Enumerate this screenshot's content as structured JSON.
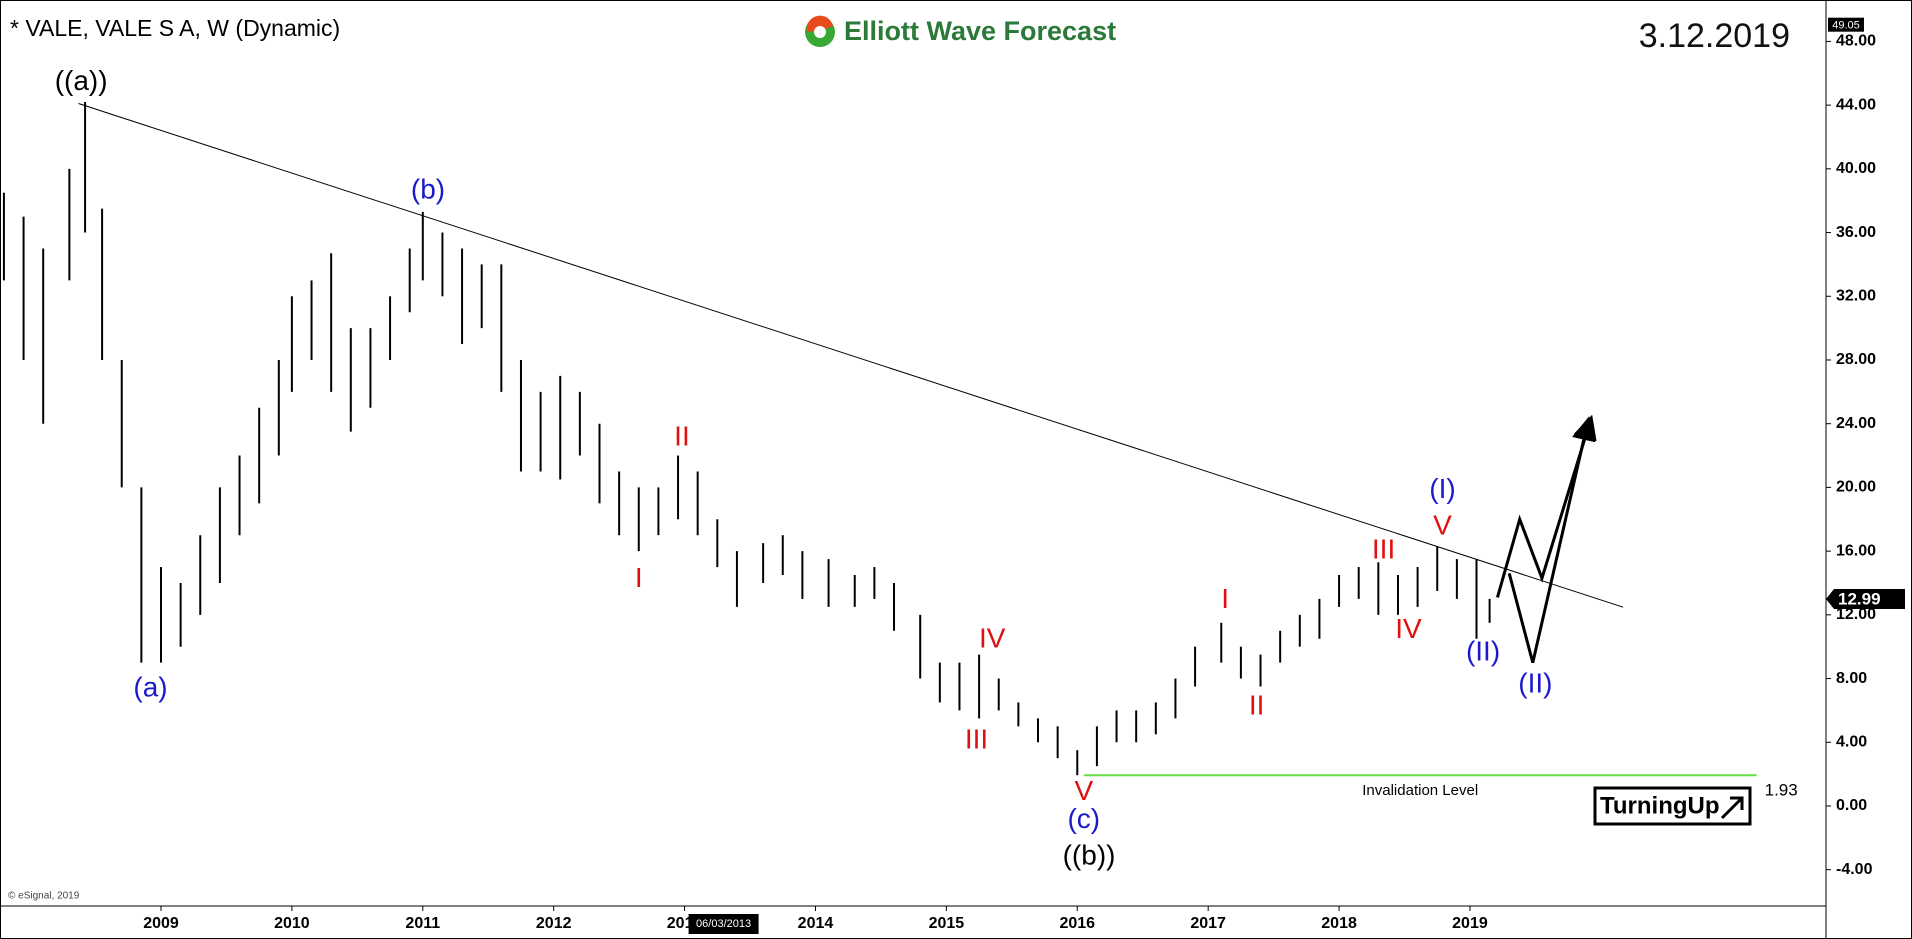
{
  "chart_data": {
    "type": "ohlc",
    "title": "* VALE, VALE S A, W (Dynamic)",
    "logo": "Elliott Wave Forecast",
    "date": "3.12.2019",
    "copyright": "© eSignal, 2019",
    "cursor_date": "06/03/2013",
    "badge": "TurningUp",
    "last_price": 12.99,
    "scale_max": 49.05,
    "color": "#000000",
    "xlim": [
      2007.77,
      2021.72
    ],
    "ylim": [
      -6.28,
      50.6
    ],
    "xticks": [
      2009,
      2010,
      2011,
      2012,
      2013,
      2014,
      2015,
      2016,
      2017,
      2018,
      2019
    ],
    "yticks": [
      {
        "value": -4,
        "label": "-4.00"
      },
      {
        "value": 0,
        "label": "0.00"
      },
      {
        "value": 4,
        "label": "4.00"
      },
      {
        "value": 8,
        "label": "8.00"
      },
      {
        "value": 12,
        "label": "12.00"
      },
      {
        "value": 16,
        "label": "16.00"
      },
      {
        "value": 20,
        "label": "20.00"
      },
      {
        "value": 24,
        "label": "24.00"
      },
      {
        "value": 28,
        "label": "28.00"
      },
      {
        "value": 32,
        "label": "32.00"
      },
      {
        "value": 36,
        "label": "36.00"
      },
      {
        "value": 40,
        "label": "40.00"
      },
      {
        "value": 44,
        "label": "44.00"
      },
      {
        "value": 48,
        "label": "48.00"
      }
    ],
    "x": [
      2007.8,
      2007.95,
      2008.1,
      2008.3,
      2008.42,
      2008.55,
      2008.7,
      2008.85,
      2009.0,
      2009.15,
      2009.3,
      2009.45,
      2009.6,
      2009.75,
      2009.9,
      2010.0,
      2010.15,
      2010.3,
      2010.45,
      2010.6,
      2010.75,
      2010.9,
      2011.0,
      2011.15,
      2011.3,
      2011.45,
      2011.6,
      2011.75,
      2011.9,
      2012.05,
      2012.2,
      2012.35,
      2012.5,
      2012.65,
      2012.8,
      2012.95,
      2013.1,
      2013.25,
      2013.4,
      2013.6,
      2013.75,
      2013.9,
      2014.1,
      2014.3,
      2014.45,
      2014.6,
      2014.8,
      2014.95,
      2015.1,
      2015.25,
      2015.4,
      2015.55,
      2015.7,
      2015.85,
      2016.0,
      2016.15,
      2016.3,
      2016.45,
      2016.6,
      2016.75,
      2016.9,
      2017.1,
      2017.25,
      2017.4,
      2017.55,
      2017.7,
      2017.85,
      2018.0,
      2018.15,
      2018.3,
      2018.45,
      2018.6,
      2018.75,
      2018.9,
      2019.05,
      2019.15
    ],
    "high": [
      38.5,
      37,
      35,
      40,
      44.2,
      37.5,
      28,
      20,
      15,
      14,
      17,
      20,
      22,
      25,
      28,
      32,
      33,
      34.7,
      30,
      30,
      32,
      35,
      37.3,
      36,
      35,
      34,
      34,
      28,
      26,
      27,
      26,
      24,
      21,
      20,
      20,
      22,
      21,
      18,
      16,
      16.5,
      17,
      16,
      15.5,
      14.5,
      15,
      14,
      12,
      9,
      9,
      9.5,
      8,
      6.5,
      5.5,
      5,
      3.5,
      5,
      6,
      6,
      6.5,
      8,
      10,
      11.5,
      10,
      9.5,
      11,
      12,
      13,
      14.5,
      15,
      15.3,
      14.5,
      15,
      16.3,
      15.5,
      15.5,
      13
    ],
    "low": [
      33,
      28,
      24,
      33,
      36,
      28,
      20,
      9,
      9,
      10,
      12,
      14,
      17,
      19,
      22,
      26,
      28,
      26,
      23.5,
      25,
      28,
      31,
      33,
      32,
      29,
      30,
      26,
      21,
      21,
      20.5,
      22,
      19,
      17,
      16,
      17,
      18,
      17,
      15,
      12.5,
      14,
      14.5,
      13,
      12.5,
      12.5,
      13,
      11,
      8,
      6.5,
      6,
      5.5,
      6,
      5,
      4,
      3,
      1.93,
      2.5,
      4,
      4,
      4.5,
      5.5,
      7.5,
      9,
      8,
      7.5,
      9,
      10,
      10.5,
      12.5,
      13,
      12,
      12,
      12.5,
      13.5,
      13,
      10.5,
      11.5
    ],
    "trendline": {
      "x": [
        2008.37,
        2020.17
      ],
      "y": [
        44.1,
        12.48
      ]
    },
    "invalidation": {
      "label": "Invalidation Level",
      "value": 1.93,
      "x": [
        2016.05,
        2021.19
      ],
      "color": "#66dd44"
    },
    "projection": [
      {
        "x": [
          2019.21,
          2019.38,
          2019.55,
          2019.92
        ],
        "y": [
          13.09,
          18.0,
          14.3,
          24.2
        ]
      },
      {
        "x": [
          2019.3,
          2019.48,
          2019.9
        ],
        "y": [
          14.6,
          9.0,
          24.1
        ]
      }
    ],
    "annotations": [
      {
        "text": "((a))",
        "x": 2008.39,
        "y": 45.4,
        "color": "#000000"
      },
      {
        "text": "(b)",
        "x": 2011.04,
        "y": 38.6,
        "color": "#1a1acc"
      },
      {
        "text": "(a)",
        "x": 2008.92,
        "y": 7.35,
        "color": "#1a1acc"
      },
      {
        "text": "II",
        "x": 2012.98,
        "y": 23.1,
        "color": "#e01010"
      },
      {
        "text": "I",
        "x": 2012.65,
        "y": 14.2,
        "color": "#e01010"
      },
      {
        "text": "IV",
        "x": 2015.35,
        "y": 10.4,
        "color": "#e01010"
      },
      {
        "text": "III",
        "x": 2015.23,
        "y": 4.06,
        "color": "#e01010"
      },
      {
        "text": "V",
        "x": 2016.05,
        "y": 0.84,
        "color": "#e01010"
      },
      {
        "text": "(c)",
        "x": 2016.05,
        "y": -0.92,
        "color": "#1a1acc"
      },
      {
        "text": "((b))",
        "x": 2016.09,
        "y": -3.2,
        "color": "#000000"
      },
      {
        "text": "I",
        "x": 2017.13,
        "y": 12.9,
        "color": "#e01010"
      },
      {
        "text": "II",
        "x": 2017.37,
        "y": 6.2,
        "color": "#e01010"
      },
      {
        "text": "III",
        "x": 2018.34,
        "y": 16.0,
        "color": "#e01010"
      },
      {
        "text": "IV",
        "x": 2018.53,
        "y": 11.0,
        "color": "#e01010"
      },
      {
        "text": "V",
        "x": 2018.79,
        "y": 17.5,
        "color": "#e01010"
      },
      {
        "text": "(I)",
        "x": 2018.79,
        "y": 19.8,
        "color": "#1a1acc"
      },
      {
        "text": "(II)",
        "x": 2019.1,
        "y": 9.6,
        "color": "#1a1acc"
      },
      {
        "text": "(II)",
        "x": 2019.5,
        "y": 7.6,
        "color": "#1a1acc"
      }
    ]
  }
}
